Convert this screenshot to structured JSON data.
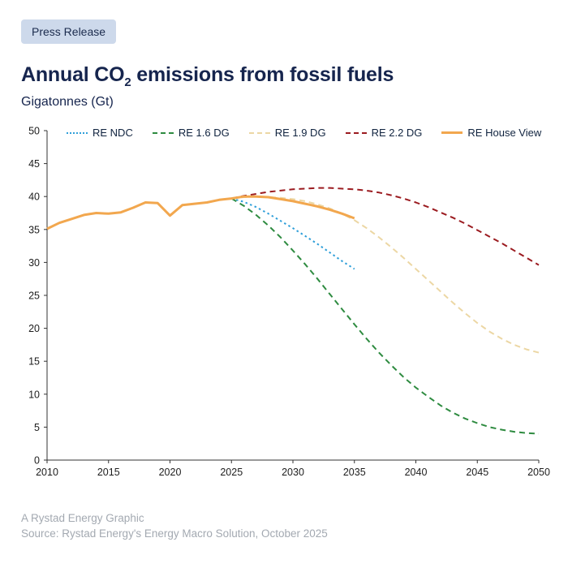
{
  "badge": {
    "label": "Press Release"
  },
  "header": {
    "title_pre": "Annual CO",
    "title_sub": "2",
    "title_post": " emissions from fossil fuels",
    "subtitle": "Gigatonnes (Gt)"
  },
  "footer": {
    "line1": "A Rystad Energy Graphic",
    "line2": "Source: Rystad Energy's Energy Macro Solution, October 2025"
  },
  "colors": {
    "navy": "#16254e",
    "badge_bg": "#cdd9eb",
    "axis": "#333333",
    "footer_text": "#a3a9b1"
  },
  "chart_data": {
    "type": "line",
    "title": "Annual CO2 emissions from fossil fuels",
    "ylabel": "Gigatonnes (Gt)",
    "xlabel": "",
    "xlim": [
      2010,
      2050
    ],
    "ylim": [
      0,
      50
    ],
    "x_ticks": [
      2010,
      2015,
      2020,
      2025,
      2030,
      2035,
      2040,
      2045,
      2050
    ],
    "y_ticks": [
      0,
      5,
      10,
      15,
      20,
      25,
      30,
      35,
      40,
      45,
      50
    ],
    "grid": false,
    "legend_position": "top",
    "series": [
      {
        "name": "RE NDC",
        "color": "#2f9fd9",
        "style": "dotted",
        "width": 2,
        "x": [
          2025,
          2026,
          2027,
          2028,
          2029,
          2030,
          2031,
          2032,
          2033,
          2034,
          2035
        ],
        "values": [
          39.7,
          39.2,
          38.4,
          37.4,
          36.3,
          35.2,
          34.0,
          32.8,
          31.5,
          30.2,
          29.0
        ]
      },
      {
        "name": "RE 1.6 DG",
        "color": "#2e8b40",
        "style": "dashed",
        "width": 2,
        "x": [
          2025,
          2026,
          2027,
          2028,
          2029,
          2030,
          2031,
          2032,
          2033,
          2034,
          2035,
          2036,
          2037,
          2038,
          2039,
          2040,
          2041,
          2042,
          2043,
          2044,
          2045,
          2046,
          2047,
          2048,
          2049,
          2050
        ],
        "values": [
          39.7,
          38.6,
          37.2,
          35.6,
          33.8,
          31.8,
          29.7,
          27.5,
          25.2,
          22.9,
          20.6,
          18.4,
          16.3,
          14.4,
          12.6,
          11.0,
          9.6,
          8.3,
          7.2,
          6.3,
          5.6,
          5.0,
          4.6,
          4.3,
          4.1,
          4.0
        ]
      },
      {
        "name": "RE 1.9 DG",
        "color": "#ecd7a4",
        "style": "dashed",
        "width": 2,
        "x": [
          2025,
          2026,
          2027,
          2028,
          2029,
          2030,
          2031,
          2032,
          2033,
          2034,
          2035,
          2036,
          2037,
          2038,
          2039,
          2040,
          2041,
          2042,
          2043,
          2044,
          2045,
          2046,
          2047,
          2048,
          2049,
          2050
        ],
        "values": [
          39.7,
          39.9,
          40.0,
          39.9,
          39.8,
          39.6,
          39.3,
          38.8,
          38.2,
          37.4,
          36.4,
          35.2,
          33.8,
          32.3,
          30.7,
          29.0,
          27.3,
          25.6,
          23.9,
          22.3,
          20.8,
          19.5,
          18.4,
          17.5,
          16.8,
          16.3
        ]
      },
      {
        "name": "RE 2.2 DG",
        "color": "#9b1b20",
        "style": "dashed",
        "width": 2,
        "x": [
          2025,
          2026,
          2027,
          2028,
          2029,
          2030,
          2031,
          2032,
          2033,
          2034,
          2035,
          2036,
          2037,
          2038,
          2039,
          2040,
          2041,
          2042,
          2043,
          2044,
          2045,
          2046,
          2047,
          2048,
          2049,
          2050
        ],
        "values": [
          39.7,
          40.1,
          40.4,
          40.7,
          40.9,
          41.1,
          41.2,
          41.3,
          41.3,
          41.2,
          41.1,
          40.9,
          40.6,
          40.2,
          39.7,
          39.1,
          38.4,
          37.6,
          36.8,
          35.9,
          34.9,
          33.9,
          32.9,
          31.8,
          30.7,
          29.6
        ]
      },
      {
        "name": "RE House View",
        "color": "#f2a74e",
        "style": "solid",
        "width": 3,
        "x": [
          2010,
          2011,
          2012,
          2013,
          2014,
          2015,
          2016,
          2017,
          2018,
          2019,
          2020,
          2021,
          2022,
          2023,
          2024,
          2025,
          2026,
          2027,
          2028,
          2029,
          2030,
          2031,
          2032,
          2033,
          2034,
          2035
        ],
        "values": [
          35.1,
          36.0,
          36.6,
          37.2,
          37.5,
          37.4,
          37.6,
          38.3,
          39.1,
          39.0,
          37.1,
          38.7,
          38.9,
          39.1,
          39.5,
          39.7,
          40.0,
          40.0,
          39.9,
          39.6,
          39.3,
          38.9,
          38.5,
          38.0,
          37.4,
          36.7
        ]
      }
    ]
  }
}
